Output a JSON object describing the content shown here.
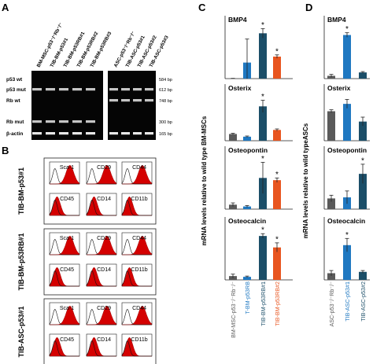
{
  "panel_letters": [
    "A",
    "B",
    "C",
    "D"
  ],
  "gel": {
    "lanes_left": [
      "BM-MSC-p53⁻/⁻Rb⁻/⁻",
      "TIB-BM-p53#1",
      "TIB-BM-p53RB#1",
      "TIB-BM-p53RB#2",
      "TIB-BM-p53RB#3"
    ],
    "lanes_right": [
      "ASC-p53⁻/⁻Rb⁻/⁻",
      "TIB-ASC-p53#1",
      "TIB-ASC-p53#2",
      "TIB-ASC-p53#3"
    ],
    "rows": [
      {
        "label": "p53 wt",
        "size": "584 bp"
      },
      {
        "label": "p53 mut",
        "size": "612 bp"
      },
      {
        "label": "Rb wt",
        "size": "748 bp"
      },
      {
        "label": "Rb mut",
        "size": "300 bp"
      },
      {
        "label": "β-actin",
        "size": "165 bp"
      }
    ]
  },
  "flow": {
    "groups": [
      "TIB-BM-p53#1",
      "TIB-BM-p53RB#1",
      "TIB-ASC-p53#1"
    ],
    "markers": [
      "Sca-1",
      "CD29",
      "CD44",
      "CD45",
      "CD14",
      "CD11b"
    ],
    "positive": [
      "Sca-1",
      "CD29",
      "CD44"
    ]
  },
  "ylabel_c": "mRNA levels relative to wild type BM-MSCs",
  "ylabel_d": "mRNA levels relative to wild typeASCs",
  "colors": {
    "gray": "#5a5a5a",
    "blue": "#1f78c1",
    "teal": "#1b4e68",
    "orange": "#e8551f",
    "red": "#d40000"
  },
  "chart_data": [
    {
      "type": "bar",
      "panel": "C",
      "categories": [
        "BM-MSC-p53⁻/⁻Rb⁻/⁻",
        "T-BM-p53RB",
        "TIB-BM-p53RB#1",
        "TIB-BM-p53RB#2"
      ],
      "category_colors": [
        "#5a5a5a",
        "#1f78c1",
        "#1b4e68",
        "#e8551f"
      ],
      "ylabel": "mRNA levels relative to wild type BM-MSCs",
      "subplots": [
        {
          "title": "BMP4",
          "values": [
            1,
            75,
            212,
            103
          ],
          "errors": [
            0.3,
            110,
            22,
            8
          ],
          "ylim": [
            0,
            250
          ],
          "significant": [
            false,
            false,
            true,
            true
          ]
        },
        {
          "title": "Osterix",
          "values": [
            1,
            0.6,
            5.1,
            1.6
          ],
          "errors": [
            0.1,
            0.1,
            0.9,
            0.15
          ],
          "ylim": [
            0,
            7
          ],
          "significant": [
            false,
            false,
            true,
            false
          ]
        },
        {
          "title": "Osteopontin",
          "values": [
            1,
            0.6,
            7,
            6.5
          ],
          "errors": [
            0.4,
            0.2,
            3.5,
            0.5
          ],
          "ylim": [
            0,
            12
          ],
          "significant": [
            false,
            false,
            true,
            true
          ]
        },
        {
          "title": "Osteocalcin",
          "values": [
            1,
            0.8,
            11.5,
            8.5
          ],
          "errors": [
            0.5,
            0.2,
            0.6,
            1.2
          ],
          "ylim": [
            0,
            14
          ],
          "significant": [
            false,
            false,
            true,
            true
          ]
        }
      ]
    },
    {
      "type": "bar",
      "panel": "D",
      "categories": [
        "ASC-p53⁻/⁻Rb⁻/⁻",
        "TIB-ASC-p53#1",
        "TIB-ASC-p53#2"
      ],
      "category_colors": [
        "#5a5a5a",
        "#1f78c1",
        "#1b4e68"
      ],
      "ylabel": "mRNA levels relative to wild typeASCs",
      "subplots": [
        {
          "title": "BMP4",
          "values": [
            1,
            15.5,
            2.2
          ],
          "errors": [
            0.5,
            0.8,
            0.3
          ],
          "ylim": [
            0,
            19
          ],
          "significant": [
            false,
            true,
            false
          ]
        },
        {
          "title": "Osterix",
          "values": [
            1,
            1.25,
            0.65
          ],
          "errors": [
            0.05,
            0.15,
            0.15
          ],
          "ylim": [
            0,
            1.6
          ],
          "significant": [
            false,
            false,
            false
          ]
        },
        {
          "title": "Osteopontin",
          "values": [
            1,
            1.1,
            3.3
          ],
          "errors": [
            0.3,
            0.6,
            0.9
          ],
          "ylim": [
            0,
            5
          ],
          "significant": [
            false,
            false,
            true
          ]
        },
        {
          "title": "Osteocalcin",
          "values": [
            1,
            5.2,
            1.2
          ],
          "errors": [
            0.4,
            1.0,
            0.2
          ],
          "ylim": [
            0,
            8
          ],
          "significant": [
            false,
            true,
            false
          ]
        }
      ]
    }
  ]
}
